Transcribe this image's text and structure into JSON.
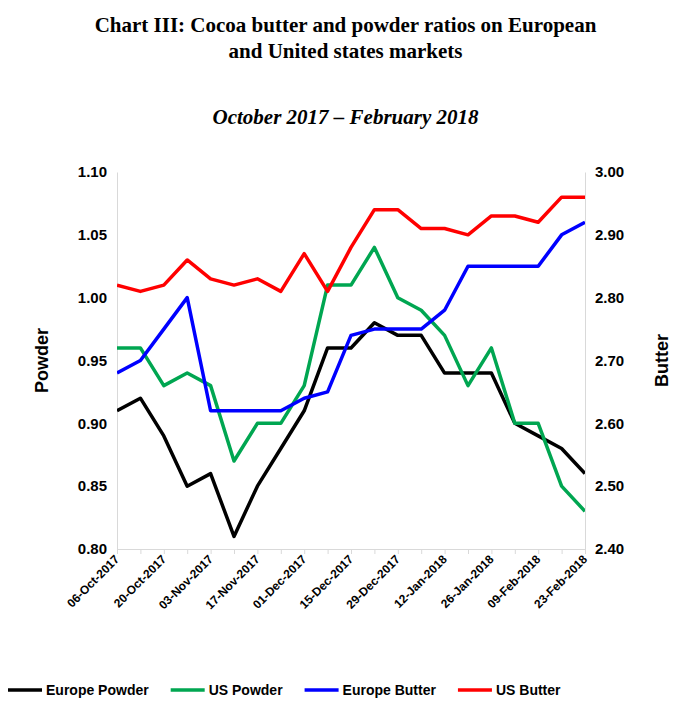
{
  "chart_data": {
    "type": "line",
    "title": [
      "Chart III: Cocoa butter and powder ratios on European",
      "and United states markets"
    ],
    "subtitle": "October 2017 – February 2018",
    "y_label": "Powder",
    "y2_label": "Butter",
    "categories": [
      "06-Oct-2017",
      null,
      "20-Oct-2017",
      null,
      "03-Nov-2017",
      null,
      "17-Nov-2017",
      null,
      "01-Dec-2017",
      null,
      "15-Dec-2017",
      null,
      "29-Dec-2017",
      null,
      "12-Jan-2018",
      null,
      "26-Jan-2018",
      null,
      "09-Feb-2018",
      null,
      "23-Feb-2018"
    ],
    "ylim": [
      0.8,
      1.1
    ],
    "yticks": [
      {
        "value": 0.8,
        "label": "0.80"
      },
      {
        "value": 0.85,
        "label": "0.85"
      },
      {
        "value": 0.9,
        "label": "0.90"
      },
      {
        "value": 0.95,
        "label": "0.95"
      },
      {
        "value": 1.0,
        "label": "1.00"
      },
      {
        "value": 1.05,
        "label": "1.05"
      },
      {
        "value": 1.1,
        "label": "1.10"
      }
    ],
    "y2lim": [
      2.4,
      3.0
    ],
    "y2ticks": [
      {
        "value": 2.4,
        "label": "2.40"
      },
      {
        "value": 2.5,
        "label": "2.50"
      },
      {
        "value": 2.6,
        "label": "2.60"
      },
      {
        "value": 2.7,
        "label": "2.70"
      },
      {
        "value": 2.8,
        "label": "2.80"
      },
      {
        "value": 2.9,
        "label": "2.90"
      },
      {
        "value": 3.0,
        "label": "3.00"
      }
    ],
    "grid": false,
    "legend": "bottom",
    "series": [
      {
        "name": "Europe Powder",
        "color": "#000000",
        "values": [
          0.91,
          0.92,
          0.89,
          0.85,
          0.86,
          0.81,
          0.85,
          0.88,
          0.91,
          0.96,
          0.96,
          0.98,
          0.97,
          0.97,
          0.94,
          0.94,
          0.94,
          0.9,
          0.89,
          0.88,
          0.86
        ]
      },
      {
        "name": "US Powder",
        "color": "#00a651",
        "values": [
          0.96,
          0.96,
          0.93,
          0.94,
          0.93,
          0.87,
          0.9,
          0.9,
          0.93,
          1.01,
          1.01,
          1.04,
          1.0,
          0.99,
          0.97,
          0.93,
          0.96,
          0.9,
          0.9,
          0.85,
          0.83
        ]
      },
      {
        "name": "Europe Butter",
        "color": "#0000ff",
        "axis": "y2",
        "values": [
          2.68,
          2.7,
          2.75,
          2.8,
          2.62,
          2.62,
          2.62,
          2.62,
          2.64,
          2.65,
          2.74,
          2.75,
          2.75,
          2.75,
          2.78,
          2.85,
          2.85,
          2.85,
          2.85,
          2.9,
          2.92
        ]
      },
      {
        "name": "US Butter",
        "color": "#ff0000",
        "axis": "y2",
        "values": [
          2.82,
          2.81,
          2.82,
          2.86,
          2.83,
          2.82,
          2.83,
          2.81,
          2.87,
          2.81,
          2.88,
          2.94,
          2.94,
          2.91,
          2.91,
          2.9,
          2.93,
          2.93,
          2.92,
          2.96,
          2.96
        ]
      }
    ]
  }
}
